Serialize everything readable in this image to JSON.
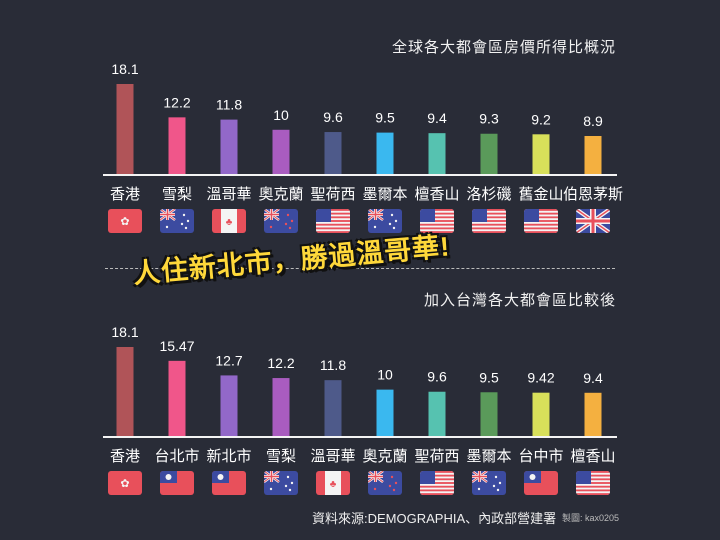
{
  "chart_data": [
    {
      "type": "bar",
      "title": "全球各大都會區房價所得比概況",
      "categories": [
        "香港",
        "雪梨",
        "溫哥華",
        "奧克蘭",
        "聖荷西",
        "墨爾本",
        "檀香山",
        "洛杉磯",
        "舊金山",
        "伯恩茅斯"
      ],
      "values": [
        18.1,
        12.2,
        11.8,
        10,
        9.6,
        9.5,
        9.4,
        9.3,
        9.2,
        8.9
      ],
      "value_labels": [
        "18.1",
        "12.2",
        "11.8",
        "10",
        "9.6",
        "9.5",
        "9.4",
        "9.3",
        "9.2",
        "8.9"
      ],
      "flags": [
        "hk",
        "au",
        "ca",
        "nz",
        "us",
        "au",
        "us",
        "us",
        "us",
        "uk"
      ],
      "colors": [
        "#b05458",
        "#f0568a",
        "#9268c9",
        "#a95cc0",
        "#4e5a8a",
        "#3ab8ef",
        "#56c2b0",
        "#5a9a5a",
        "#d8e05a",
        "#f4b040"
      ],
      "xlabel": "",
      "ylabel": "",
      "ylim": [
        2,
        18.1
      ],
      "grid": false
    },
    {
      "type": "bar",
      "title": "加入台灣各大都會區比較後",
      "categories": [
        "香港",
        "台北市",
        "新北市",
        "雪梨",
        "溫哥華",
        "奧克蘭",
        "聖荷西",
        "墨爾本",
        "台中市",
        "檀香山"
      ],
      "values": [
        18.1,
        15.47,
        12.7,
        12.2,
        11.8,
        10,
        9.6,
        9.5,
        9.42,
        9.4
      ],
      "value_labels": [
        "18.1",
        "15.47",
        "12.7",
        "12.2",
        "11.8",
        "10",
        "9.6",
        "9.5",
        "9.42",
        "9.4"
      ],
      "flags": [
        "hk",
        "tw",
        "tw",
        "au",
        "ca",
        "nz",
        "us",
        "au",
        "tw",
        "us"
      ],
      "colors": [
        "#b05458",
        "#f0568a",
        "#9268c9",
        "#a95cc0",
        "#4e5a8a",
        "#3ab8ef",
        "#56c2b0",
        "#5a9a5a",
        "#d8e05a",
        "#f4b040"
      ],
      "xlabel": "",
      "ylabel": "",
      "ylim": [
        1,
        18.1
      ],
      "grid": false
    }
  ],
  "banner": "人住新北市，勝過溫哥華!",
  "source": "資料來源:DEMOGRAPHIA、內政部營建署",
  "credit": "製圖: kax0205"
}
